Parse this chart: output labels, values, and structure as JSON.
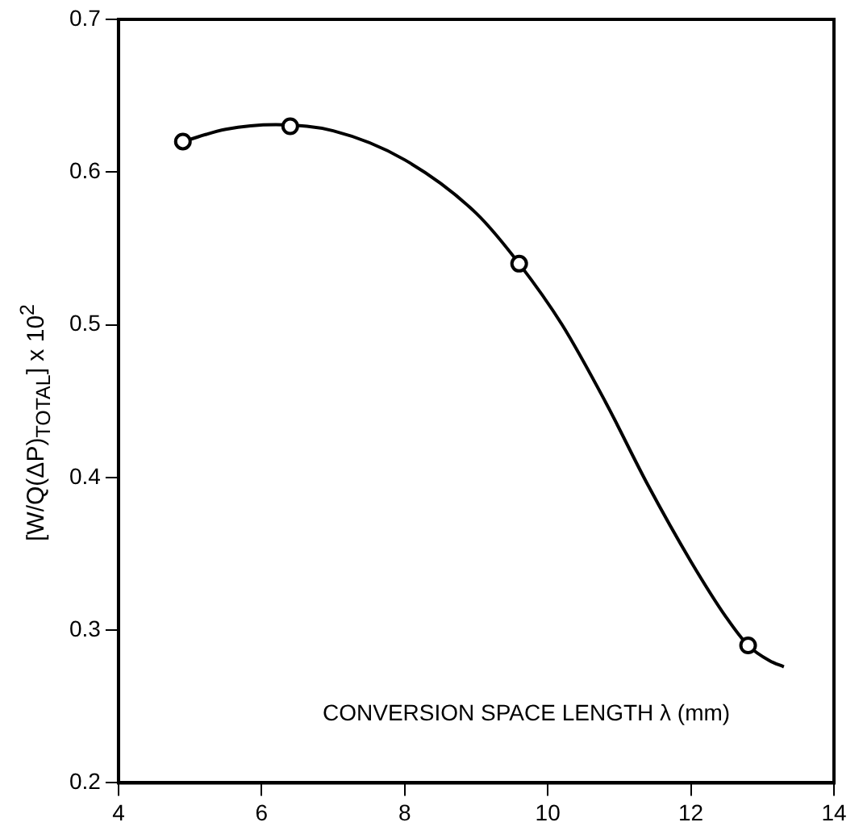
{
  "chart_data": {
    "type": "scatter",
    "xlabel": "CONVERSION SPACE LENGTH λ (mm)",
    "ylabel": "[W/Q(ΔP)$_{TOTAL}$] x 10$^{2}$",
    "xlim": [
      4,
      14
    ],
    "xticks": [
      4,
      6,
      8,
      10,
      12,
      14
    ],
    "ylim": [
      0.2,
      0.7
    ],
    "yticks": [
      0.2,
      0.3,
      0.4,
      0.5,
      0.6,
      0.7
    ],
    "grid": false,
    "legend": false,
    "series": [
      {
        "color": "#000000",
        "marker": "circle",
        "x": [
          4.9,
          6.4,
          9.6,
          12.8
        ],
        "values": [
          0.62,
          0.63,
          0.54,
          0.29
        ]
      },
      {
        "type": "line",
        "color": "#000000",
        "marker": "none",
        "line_style": "solid",
        "x": [
          4.9,
          5.5,
          6.2,
          7,
          8,
          9,
          9.6,
          10.2,
          10.8,
          11.4,
          12,
          12.5,
          12.8,
          13.1,
          13.3
        ],
        "values": [
          0.62,
          0.628,
          0.631,
          0.627,
          0.608,
          0.573,
          0.54,
          0.5,
          0.45,
          0.395,
          0.345,
          0.308,
          0.29,
          0.28,
          0.276
        ]
      }
    ]
  }
}
